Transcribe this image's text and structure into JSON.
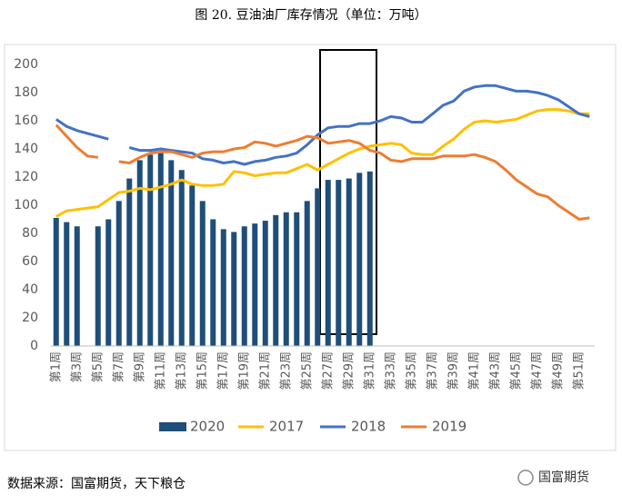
{
  "chart_data": {
    "type": "bar_line",
    "title": "图 20.  豆油油厂库存情况（单位：万吨）",
    "source": "数据来源：国富期货，天下粮仓",
    "logo": "国富期货",
    "categories": [
      "第1周",
      null,
      "第3周",
      null,
      "第5周",
      null,
      "第7周",
      null,
      "第9周",
      null,
      "第11周",
      null,
      "第13周",
      null,
      "第15周",
      null,
      "第17周",
      null,
      "第19周",
      null,
      "第21周",
      null,
      "第23周",
      null,
      "第25周",
      null,
      "第27周",
      null,
      "第29周",
      null,
      "第31周",
      null,
      "第33周",
      null,
      "第35周",
      null,
      "第37周",
      null,
      "第39周",
      null,
      "第41周",
      null,
      "第43周",
      null,
      "第45周",
      null,
      "第47周",
      null,
      "第49周",
      null,
      "第51周",
      null
    ],
    "ylim": [
      0,
      200
    ],
    "yticks": [
      0,
      20,
      40,
      60,
      80,
      100,
      120,
      140,
      160,
      180,
      200
    ],
    "grid": false,
    "legend": "bottom",
    "series": [
      {
        "name": "2020",
        "kind": "bar",
        "color": "#1f4e79",
        "values": [
          91,
          88,
          85,
          null,
          85,
          90,
          103,
          119,
          132,
          136,
          137,
          132,
          125,
          114,
          103,
          90,
          83,
          81,
          85,
          87,
          89,
          93,
          95,
          95,
          103,
          112,
          118,
          118,
          119,
          123,
          124,
          null,
          null,
          null,
          null,
          null,
          null,
          null,
          null,
          null,
          null,
          null,
          null,
          null,
          null,
          null,
          null,
          null,
          null,
          null,
          null,
          null
        ]
      },
      {
        "name": "2017",
        "kind": "line",
        "color": "#ffc000",
        "values": [
          92,
          96,
          97,
          98,
          99,
          104,
          109,
          110,
          112,
          111,
          113,
          115,
          118,
          115,
          114,
          114,
          115,
          124,
          123,
          121,
          122,
          123,
          123,
          126,
          129,
          125,
          129,
          133,
          137,
          140,
          142,
          143,
          144,
          143,
          137,
          136,
          136,
          142,
          147,
          154,
          159,
          160,
          159,
          160,
          161,
          164,
          167,
          168,
          168,
          167,
          165,
          165
        ]
      },
      {
        "name": "2018",
        "kind": "line",
        "color": "#4472c4",
        "values": [
          161,
          156,
          153,
          151,
          149,
          147,
          null,
          141,
          139,
          139,
          140,
          139,
          138,
          137,
          133,
          132,
          130,
          131,
          129,
          131,
          132,
          134,
          135,
          137,
          143,
          150,
          155,
          156,
          156,
          158,
          158,
          160,
          163,
          162,
          159,
          159,
          165,
          171,
          174,
          181,
          184,
          185,
          185,
          183,
          181,
          181,
          180,
          178,
          175,
          170,
          165,
          163
        ]
      },
      {
        "name": "2019",
        "kind": "line",
        "color": "#ed7d31",
        "values": [
          157,
          149,
          141,
          135,
          134,
          null,
          131,
          130,
          134,
          137,
          138,
          138,
          136,
          134,
          137,
          138,
          138,
          140,
          141,
          145,
          144,
          142,
          144,
          146,
          149,
          148,
          144,
          145,
          146,
          144,
          139,
          137,
          132,
          131,
          133,
          133,
          133,
          135,
          135,
          135,
          136,
          134,
          131,
          125,
          118,
          113,
          108,
          106,
          100,
          95,
          90,
          91
        ]
      }
    ]
  }
}
